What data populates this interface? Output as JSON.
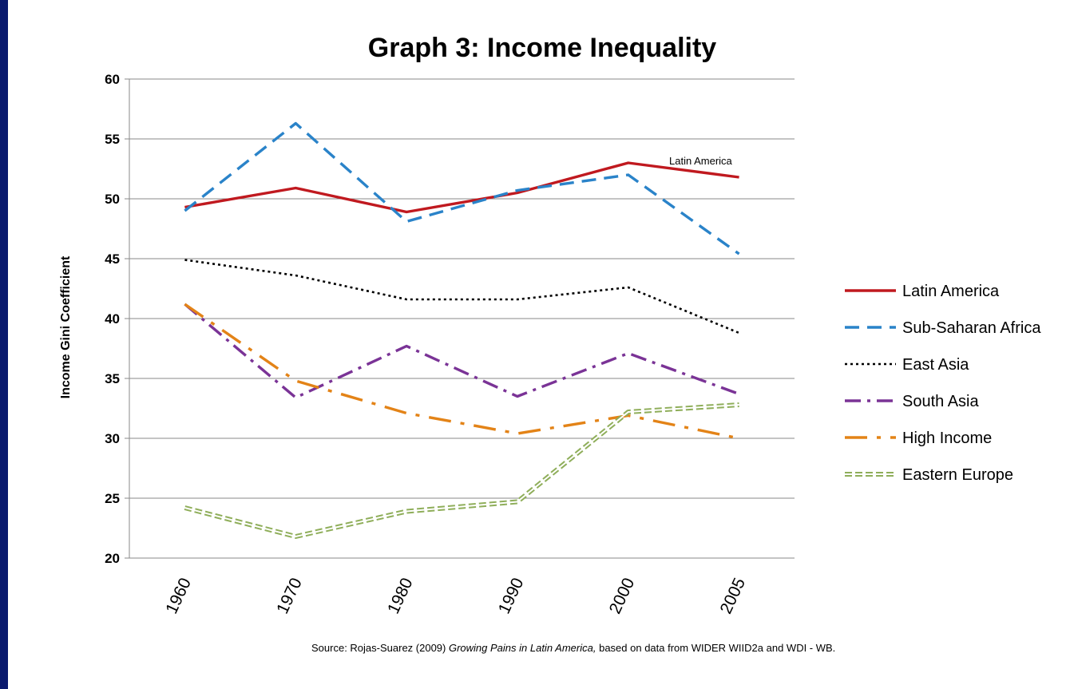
{
  "chart_data": {
    "type": "line",
    "title": "Graph 3: Income Inequality",
    "ylabel": "Income Gini Coefficient",
    "xlabel": "",
    "categories": [
      "1960",
      "1970",
      "1980",
      "1990",
      "2000",
      "2005"
    ],
    "ylim": [
      20,
      60
    ],
    "yticks": [
      20,
      25,
      30,
      35,
      40,
      45,
      50,
      55,
      60
    ],
    "grid": "horizontal",
    "legend_position": "right",
    "series": [
      {
        "name": "Latin America",
        "color": "#c0191f",
        "style": "solid",
        "values": [
          49.3,
          50.9,
          48.9,
          50.5,
          53.0,
          51.8
        ]
      },
      {
        "name": "Sub-Saharan Africa",
        "color": "#2a83c9",
        "style": "dashed",
        "values": [
          49.0,
          56.3,
          48.1,
          50.7,
          52.0,
          45.4
        ]
      },
      {
        "name": "East Asia",
        "color": "#000000",
        "style": "dotted",
        "values": [
          44.9,
          43.6,
          41.6,
          41.6,
          42.6,
          38.8
        ]
      },
      {
        "name": "South Asia",
        "color": "#7a3396",
        "style": "dash-dot",
        "values": [
          41.2,
          33.4,
          37.7,
          33.5,
          37.1,
          33.7
        ]
      },
      {
        "name": "High Income",
        "color": "#e38317",
        "style": "long-dash-dot",
        "values": [
          41.2,
          34.8,
          32.1,
          30.4,
          31.9,
          30.0
        ]
      },
      {
        "name": "Eastern Europe",
        "color": "#8fae5a",
        "style": "double",
        "values": [
          24.2,
          21.8,
          23.9,
          24.7,
          32.2,
          32.8
        ]
      }
    ],
    "annotations": [
      {
        "text": "Latin America",
        "series": "Latin America",
        "near": "2000-2005"
      }
    ]
  },
  "source": {
    "prefix": "Source: Rojas-Suarez (2009) ",
    "italic": "Growing Pains in Latin America,",
    "suffix": " based on data from  WIDER WIID2a and WDI - WB."
  }
}
